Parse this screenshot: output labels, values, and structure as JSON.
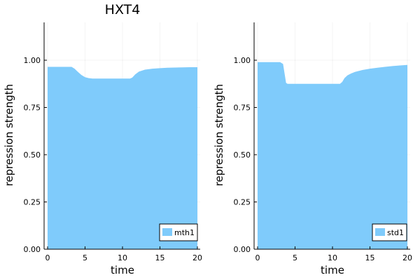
{
  "chart_data": [
    {
      "type": "area",
      "title": "HXT4",
      "xlabel": "time",
      "ylabel": "repression strength",
      "xlim": [
        0,
        20
      ],
      "ylim": [
        0,
        1.2
      ],
      "xticks": [
        "0",
        "5",
        "10",
        "15",
        "20"
      ],
      "yticks": [
        "0.00",
        "0.25",
        "0.50",
        "0.75",
        "1.00"
      ],
      "grid": true,
      "legend_position": "bottom-right",
      "color": "#7fcbfb",
      "series": [
        {
          "name": "mth1",
          "x": [
            0,
            1,
            2,
            3.2,
            3.6,
            4.0,
            4.5,
            5.0,
            5.5,
            6.0,
            7,
            8,
            9,
            10,
            11,
            11.3,
            11.7,
            12.2,
            13,
            14,
            15,
            16,
            17,
            18,
            19,
            20
          ],
          "values": [
            0.965,
            0.965,
            0.965,
            0.965,
            0.955,
            0.94,
            0.922,
            0.91,
            0.905,
            0.903,
            0.903,
            0.903,
            0.903,
            0.903,
            0.903,
            0.908,
            0.925,
            0.94,
            0.95,
            0.955,
            0.958,
            0.96,
            0.961,
            0.962,
            0.963,
            0.963
          ]
        }
      ]
    },
    {
      "type": "area",
      "title": "",
      "xlabel": "time",
      "ylabel": "repression strength",
      "xlim": [
        0,
        20
      ],
      "ylim": [
        0,
        1.2
      ],
      "xticks": [
        "0",
        "5",
        "10",
        "15",
        "20"
      ],
      "yticks": [
        "0.00",
        "0.25",
        "0.50",
        "0.75",
        "1.00"
      ],
      "grid": true,
      "legend_position": "bottom-right",
      "color": "#7fcbfb",
      "series": [
        {
          "name": "std1",
          "x": [
            0,
            1,
            2,
            3,
            3.4,
            3.6,
            3.8,
            4.0,
            5,
            6,
            7,
            8,
            9,
            10,
            11,
            11.3,
            11.6,
            12,
            12.5,
            13,
            14,
            15,
            16,
            17,
            18,
            19,
            20
          ],
          "values": [
            0.99,
            0.99,
            0.99,
            0.99,
            0.98,
            0.93,
            0.88,
            0.875,
            0.875,
            0.875,
            0.875,
            0.875,
            0.875,
            0.875,
            0.875,
            0.885,
            0.905,
            0.92,
            0.93,
            0.938,
            0.948,
            0.955,
            0.96,
            0.965,
            0.969,
            0.972,
            0.975
          ]
        }
      ]
    }
  ]
}
